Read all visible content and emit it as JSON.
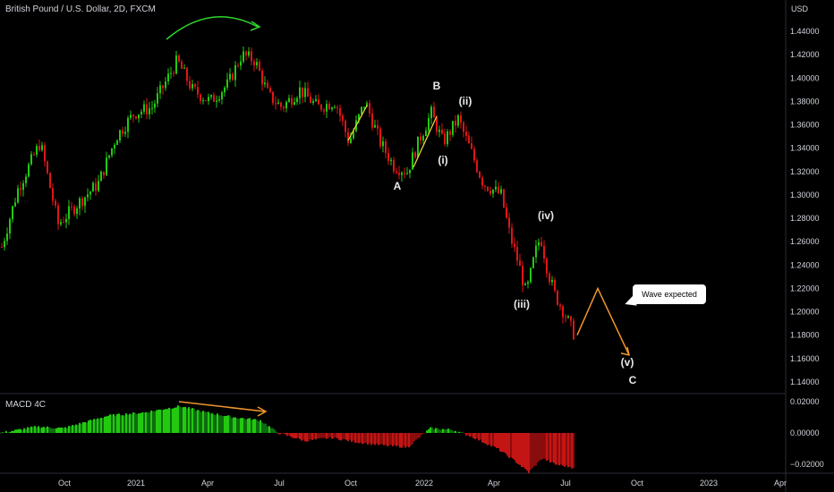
{
  "chart_data": [
    {
      "type": "candlestick",
      "title": "British Pound / U.S. Dollar, 2D, FXCM",
      "axis_unit": "USD",
      "ylim": [
        1.13,
        1.45
      ],
      "yticks": [
        "1.44000",
        "1.42000",
        "1.40000",
        "1.38000",
        "1.36000",
        "1.34000",
        "1.32000",
        "1.30000",
        "1.28000",
        "1.26000",
        "1.24000",
        "1.22000",
        "1.20000",
        "1.18000",
        "1.16000",
        "1.14000"
      ],
      "xticks": [
        "Oct",
        "2021",
        "Apr",
        "Jul",
        "Oct",
        "2022",
        "Apr",
        "Jul",
        "Oct",
        "2023",
        "Apr"
      ],
      "price_path": [
        {
          "x": 0,
          "y": 1.25
        },
        {
          "x": 20,
          "y": 1.305
        },
        {
          "x": 45,
          "y": 1.345
        },
        {
          "x": 65,
          "y": 1.275
        },
        {
          "x": 90,
          "y": 1.295
        },
        {
          "x": 110,
          "y": 1.31
        },
        {
          "x": 130,
          "y": 1.35
        },
        {
          "x": 150,
          "y": 1.37
        },
        {
          "x": 170,
          "y": 1.375
        },
        {
          "x": 198,
          "y": 1.415
        },
        {
          "x": 215,
          "y": 1.39
        },
        {
          "x": 235,
          "y": 1.38
        },
        {
          "x": 255,
          "y": 1.395
        },
        {
          "x": 270,
          "y": 1.42
        },
        {
          "x": 285,
          "y": 1.415
        },
        {
          "x": 300,
          "y": 1.385
        },
        {
          "x": 315,
          "y": 1.375
        },
        {
          "x": 335,
          "y": 1.39
        },
        {
          "x": 355,
          "y": 1.375
        },
        {
          "x": 375,
          "y": 1.38
        },
        {
          "x": 390,
          "y": 1.345
        },
        {
          "x": 408,
          "y": 1.38
        },
        {
          "x": 425,
          "y": 1.345
        },
        {
          "x": 440,
          "y": 1.325
        },
        {
          "x": 455,
          "y": 1.32
        },
        {
          "x": 470,
          "y": 1.35
        },
        {
          "x": 482,
          "y": 1.37
        },
        {
          "x": 495,
          "y": 1.345
        },
        {
          "x": 512,
          "y": 1.365
        },
        {
          "x": 525,
          "y": 1.34
        },
        {
          "x": 540,
          "y": 1.31
        },
        {
          "x": 560,
          "y": 1.3
        },
        {
          "x": 570,
          "y": 1.265
        },
        {
          "x": 580,
          "y": 1.24
        },
        {
          "x": 588,
          "y": 1.215
        },
        {
          "x": 598,
          "y": 1.25
        },
        {
          "x": 604,
          "y": 1.265
        },
        {
          "x": 612,
          "y": 1.235
        },
        {
          "x": 620,
          "y": 1.215
        },
        {
          "x": 630,
          "y": 1.2
        },
        {
          "x": 642,
          "y": 1.18
        }
      ],
      "projection": [
        {
          "x": 645,
          "y": 1.18
        },
        {
          "x": 668,
          "y": 1.22
        },
        {
          "x": 703,
          "y": 1.163
        }
      ],
      "labels": [
        "B",
        "(ii)",
        "(i)",
        "A",
        "(iv)",
        "(iii)",
        "(v)",
        "C"
      ],
      "annotation": "Wave expected",
      "colors": {
        "up": "#22c90f",
        "down": "#e01515",
        "arrow_green": "#2ed52e",
        "orange": "#f0962a"
      }
    },
    {
      "type": "histogram",
      "title": "MACD 4C",
      "ylim": [
        -0.025,
        0.025
      ],
      "yticks": [
        "0.02000",
        "0.00000",
        "−0.02000"
      ],
      "values_path": [
        {
          "x": 0,
          "y": 0.0
        },
        {
          "x": 40,
          "y": 0.004
        },
        {
          "x": 70,
          "y": 0.003
        },
        {
          "x": 120,
          "y": 0.011
        },
        {
          "x": 160,
          "y": 0.013
        },
        {
          "x": 200,
          "y": 0.017
        },
        {
          "x": 230,
          "y": 0.013
        },
        {
          "x": 260,
          "y": 0.01
        },
        {
          "x": 290,
          "y": 0.008
        },
        {
          "x": 310,
          "y": 0.0
        },
        {
          "x": 340,
          "y": -0.005
        },
        {
          "x": 370,
          "y": -0.003
        },
        {
          "x": 400,
          "y": -0.006
        },
        {
          "x": 430,
          "y": -0.008
        },
        {
          "x": 455,
          "y": -0.009
        },
        {
          "x": 480,
          "y": 0.003
        },
        {
          "x": 505,
          "y": 0.002
        },
        {
          "x": 525,
          "y": -0.002
        },
        {
          "x": 555,
          "y": -0.01
        },
        {
          "x": 575,
          "y": -0.018
        },
        {
          "x": 590,
          "y": -0.025
        },
        {
          "x": 605,
          "y": -0.016
        },
        {
          "x": 620,
          "y": -0.02
        },
        {
          "x": 641,
          "y": -0.022
        }
      ],
      "colors": {
        "pos_strong": "#22c90f",
        "pos_weak": "#0e6b0e",
        "neg_strong": "#c41515",
        "neg_weak": "#8a0d0d"
      }
    }
  ]
}
